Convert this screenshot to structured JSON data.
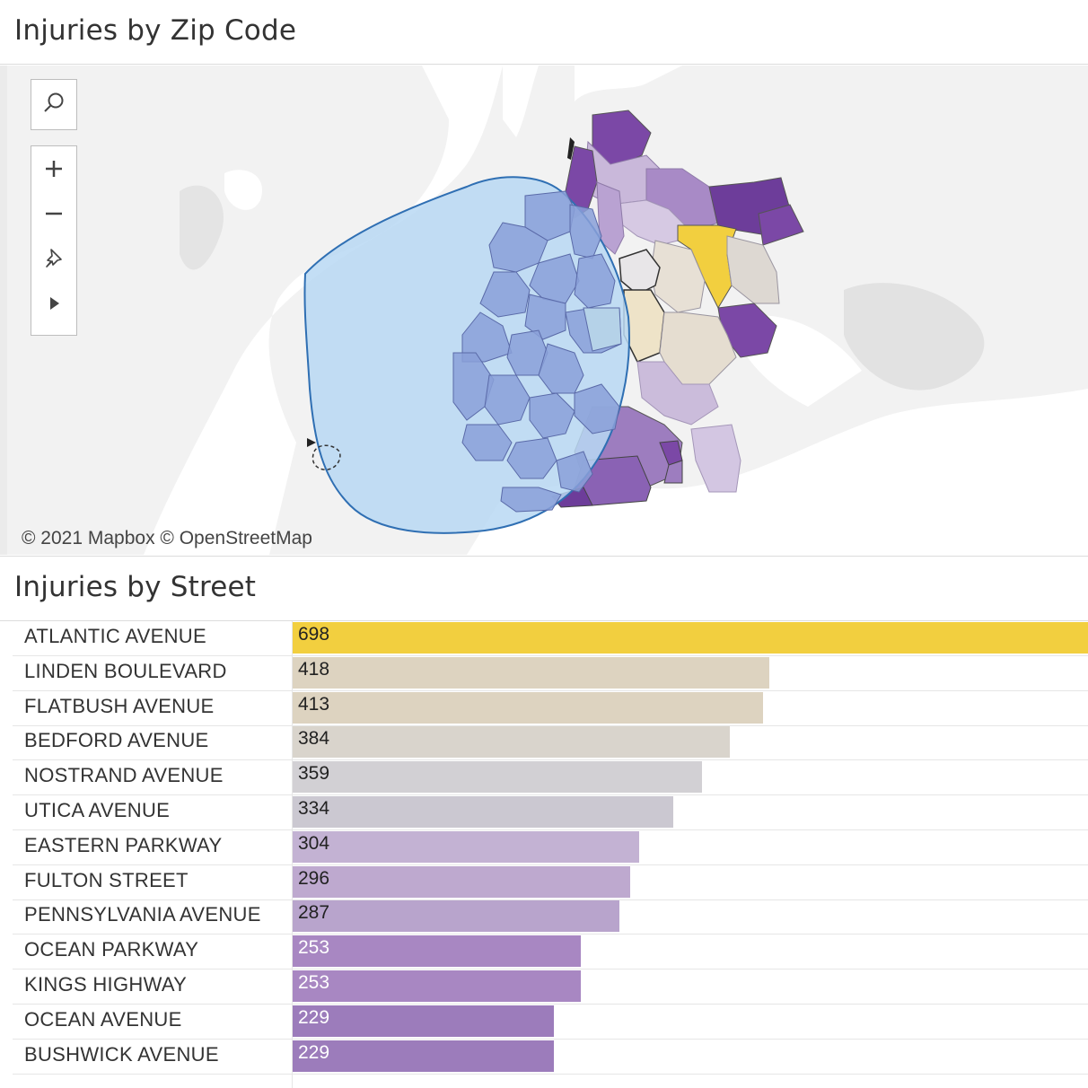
{
  "map_panel": {
    "title": "Injuries by Zip Code",
    "attribution": "© 2021 Mapbox © OpenStreetMap",
    "controls": [
      "search-icon",
      "zoom-in-icon",
      "zoom-out-icon",
      "pin-icon",
      "play-icon"
    ]
  },
  "bar_panel": {
    "title": "Injuries by Street"
  },
  "colors": {
    "highlight": "#f2cf3f",
    "selection_fill": "#b9d8f3",
    "selection_stroke": "#2f6fb3",
    "dark_purple": "#7b48a6"
  },
  "chart_data": {
    "type": "bar",
    "orientation": "horizontal",
    "title": "Injuries by Street",
    "categories": [
      "ATLANTIC AVENUE",
      "LINDEN BOULEVARD",
      "FLATBUSH AVENUE",
      "BEDFORD AVENUE",
      "NOSTRAND AVENUE",
      "UTICA AVENUE",
      "EASTERN PARKWAY",
      "FULTON STREET",
      "PENNSYLVANIA AVENUE",
      "OCEAN PARKWAY",
      "KINGS HIGHWAY",
      "OCEAN AVENUE",
      "BUSHWICK AVENUE"
    ],
    "values": [
      698,
      418,
      413,
      384,
      359,
      334,
      304,
      296,
      287,
      253,
      253,
      229,
      229
    ],
    "xlim": [
      0,
      698
    ],
    "colors": [
      "#f2cf3f",
      "#ddd3c0",
      "#ddd3c0",
      "#d9d4cc",
      "#d2d0d4",
      "#cbc8d1",
      "#c3b2d3",
      "#bea9cf",
      "#b8a4cc",
      "#a887c2",
      "#a887c2",
      "#9c7cbb",
      "#9c7cbb"
    ]
  }
}
